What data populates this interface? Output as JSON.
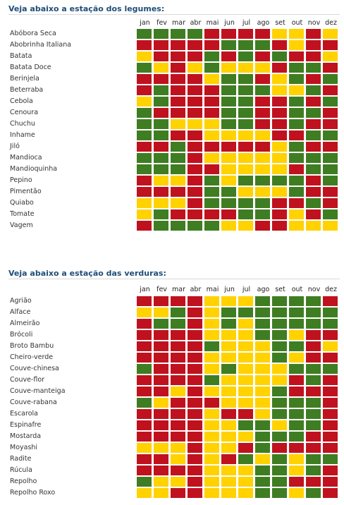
{
  "colors": {
    "R": "#c0111f",
    "G": "#3f7d22",
    "Y": "#ffd200"
  },
  "months": [
    "jan",
    "fev",
    "mar",
    "abr",
    "mai",
    "jun",
    "jul",
    "ago",
    "set",
    "out",
    "nov",
    "dez"
  ],
  "chart_data": [
    {
      "type": "heatmap",
      "title": "Veja abaixo a estação dos legumes:",
      "x": [
        "jan",
        "fev",
        "mar",
        "abr",
        "mai",
        "jun",
        "jul",
        "ago",
        "set",
        "out",
        "nov",
        "dez"
      ],
      "rows": [
        {
          "label": "Abóbora Seca",
          "values": [
            "G",
            "G",
            "G",
            "G",
            "R",
            "R",
            "R",
            "R",
            "Y",
            "Y",
            "R",
            "Y"
          ]
        },
        {
          "label": "Abobrinha Italiana",
          "values": [
            "R",
            "R",
            "R",
            "R",
            "R",
            "G",
            "G",
            "G",
            "R",
            "Y",
            "R",
            "R"
          ]
        },
        {
          "label": "Batata",
          "values": [
            "Y",
            "R",
            "R",
            "R",
            "G",
            "R",
            "G",
            "R",
            "G",
            "R",
            "R",
            "Y"
          ]
        },
        {
          "label": "Batata Doce",
          "values": [
            "G",
            "Y",
            "R",
            "Y",
            "G",
            "Y",
            "Y",
            "Y",
            "R",
            "G",
            "G",
            "R"
          ]
        },
        {
          "label": "Berinjela",
          "values": [
            "R",
            "R",
            "R",
            "R",
            "Y",
            "G",
            "G",
            "R",
            "Y",
            "G",
            "R",
            "G"
          ]
        },
        {
          "label": "Beterraba",
          "values": [
            "R",
            "G",
            "R",
            "R",
            "R",
            "G",
            "G",
            "G",
            "Y",
            "Y",
            "G",
            "R"
          ]
        },
        {
          "label": "Cebola",
          "values": [
            "Y",
            "G",
            "R",
            "R",
            "R",
            "G",
            "G",
            "R",
            "R",
            "G",
            "R",
            "G"
          ]
        },
        {
          "label": "Cenoura",
          "values": [
            "G",
            "R",
            "R",
            "R",
            "R",
            "G",
            "G",
            "R",
            "R",
            "G",
            "G",
            "R"
          ]
        },
        {
          "label": "Chuchu",
          "values": [
            "G",
            "G",
            "Y",
            "Y",
            "Y",
            "G",
            "G",
            "R",
            "R",
            "G",
            "R",
            "R"
          ]
        },
        {
          "label": "Inhame",
          "values": [
            "G",
            "G",
            "R",
            "R",
            "Y",
            "Y",
            "Y",
            "Y",
            "R",
            "R",
            "G",
            "G"
          ]
        },
        {
          "label": "Jiló",
          "values": [
            "R",
            "R",
            "G",
            "R",
            "R",
            "R",
            "R",
            "R",
            "Y",
            "G",
            "R",
            "R"
          ]
        },
        {
          "label": "Mandioca",
          "values": [
            "G",
            "G",
            "G",
            "R",
            "Y",
            "Y",
            "Y",
            "Y",
            "Y",
            "G",
            "G",
            "G"
          ]
        },
        {
          "label": "Mandioquinha",
          "values": [
            "G",
            "G",
            "G",
            "R",
            "R",
            "Y",
            "Y",
            "Y",
            "Y",
            "R",
            "G",
            "G"
          ]
        },
        {
          "label": "Pepino",
          "values": [
            "R",
            "Y",
            "Y",
            "R",
            "G",
            "Y",
            "G",
            "G",
            "G",
            "G",
            "R",
            "G"
          ]
        },
        {
          "label": "Pimentão",
          "values": [
            "R",
            "R",
            "R",
            "R",
            "G",
            "G",
            "Y",
            "Y",
            "Y",
            "G",
            "R",
            "R"
          ]
        },
        {
          "label": "Quiabo",
          "values": [
            "Y",
            "Y",
            "Y",
            "R",
            "G",
            "G",
            "G",
            "G",
            "R",
            "R",
            "G",
            "R"
          ]
        },
        {
          "label": "Tomate",
          "values": [
            "Y",
            "G",
            "R",
            "R",
            "R",
            "R",
            "G",
            "G",
            "R",
            "Y",
            "R",
            "G"
          ]
        },
        {
          "label": "Vagem",
          "values": [
            "R",
            "G",
            "G",
            "G",
            "G",
            "Y",
            "Y",
            "R",
            "R",
            "Y",
            "Y",
            "Y"
          ]
        }
      ]
    },
    {
      "type": "heatmap",
      "title": "Veja abaixo a estação das verduras:",
      "x": [
        "jan",
        "fev",
        "mar",
        "abr",
        "mai",
        "jun",
        "jul",
        "ago",
        "set",
        "out",
        "nov",
        "dez"
      ],
      "rows": [
        {
          "label": "Agrião",
          "values": [
            "R",
            "R",
            "R",
            "R",
            "Y",
            "Y",
            "Y",
            "G",
            "G",
            "G",
            "G",
            "R"
          ]
        },
        {
          "label": "Alface",
          "values": [
            "Y",
            "Y",
            "G",
            "R",
            "Y",
            "G",
            "G",
            "G",
            "G",
            "G",
            "G",
            "G"
          ]
        },
        {
          "label": "Almeirão",
          "values": [
            "R",
            "G",
            "G",
            "R",
            "Y",
            "G",
            "Y",
            "G",
            "G",
            "G",
            "G",
            "G"
          ]
        },
        {
          "label": "Brócoli",
          "values": [
            "R",
            "R",
            "R",
            "R",
            "Y",
            "Y",
            "Y",
            "G",
            "G",
            "Y",
            "R",
            "R"
          ]
        },
        {
          "label": "Broto Bambu",
          "values": [
            "R",
            "R",
            "R",
            "R",
            "G",
            "Y",
            "Y",
            "Y",
            "G",
            "G",
            "R",
            "Y"
          ]
        },
        {
          "label": "Cheiro-verde",
          "values": [
            "R",
            "R",
            "R",
            "R",
            "Y",
            "Y",
            "Y",
            "Y",
            "G",
            "Y",
            "R",
            "R"
          ]
        },
        {
          "label": "Couve-chinesa",
          "values": [
            "G",
            "R",
            "R",
            "R",
            "Y",
            "G",
            "Y",
            "Y",
            "Y",
            "G",
            "G",
            "G"
          ]
        },
        {
          "label": "Couve-flor",
          "values": [
            "R",
            "R",
            "R",
            "R",
            "G",
            "Y",
            "Y",
            "Y",
            "Y",
            "R",
            "G",
            "R"
          ]
        },
        {
          "label": "Couve-manteiga",
          "values": [
            "R",
            "R",
            "Y",
            "R",
            "Y",
            "Y",
            "Y",
            "Y",
            "G",
            "R",
            "R",
            "R"
          ]
        },
        {
          "label": "Couve-rabana",
          "values": [
            "G",
            "Y",
            "R",
            "R",
            "R",
            "Y",
            "Y",
            "Y",
            "G",
            "G",
            "G",
            "R"
          ]
        },
        {
          "label": "Escarola",
          "values": [
            "R",
            "R",
            "R",
            "R",
            "Y",
            "R",
            "R",
            "Y",
            "G",
            "G",
            "G",
            "R"
          ]
        },
        {
          "label": "Espinafre",
          "values": [
            "R",
            "R",
            "R",
            "R",
            "Y",
            "Y",
            "G",
            "G",
            "Y",
            "G",
            "G",
            "R"
          ]
        },
        {
          "label": "Mostarda",
          "values": [
            "R",
            "R",
            "R",
            "R",
            "Y",
            "Y",
            "Y",
            "G",
            "G",
            "G",
            "R",
            "R"
          ]
        },
        {
          "label": "Moyashi",
          "values": [
            "Y",
            "Y",
            "Y",
            "R",
            "Y",
            "Y",
            "R",
            "G",
            "R",
            "R",
            "R",
            "R"
          ]
        },
        {
          "label": "Radite",
          "values": [
            "R",
            "R",
            "Y",
            "R",
            "Y",
            "R",
            "G",
            "Y",
            "G",
            "Y",
            "G",
            "G"
          ]
        },
        {
          "label": "Rúcula",
          "values": [
            "R",
            "R",
            "R",
            "R",
            "Y",
            "Y",
            "Y",
            "G",
            "G",
            "Y",
            "G",
            "R"
          ]
        },
        {
          "label": "Repolho",
          "values": [
            "G",
            "Y",
            "Y",
            "R",
            "Y",
            "Y",
            "Y",
            "G",
            "G",
            "R",
            "R",
            "R"
          ]
        },
        {
          "label": "Repolho Roxo",
          "values": [
            "Y",
            "Y",
            "R",
            "R",
            "Y",
            "Y",
            "Y",
            "G",
            "G",
            "Y",
            "G",
            "R"
          ]
        }
      ]
    }
  ]
}
